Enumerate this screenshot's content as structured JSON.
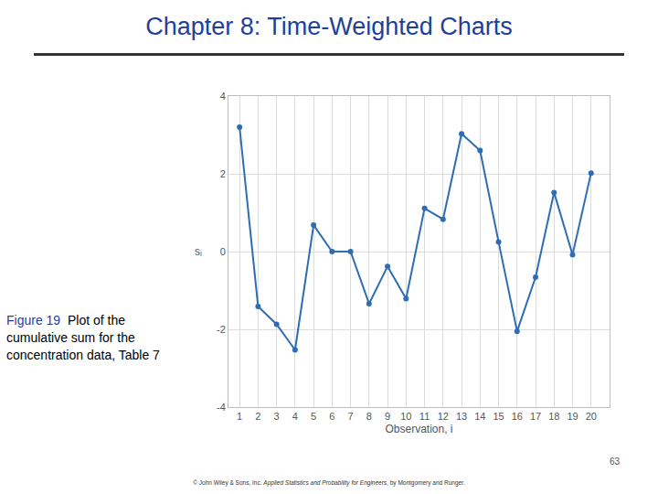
{
  "title": "Chapter 8: Time-Weighted Charts",
  "caption": {
    "label": "Figure 19",
    "text": "Plot of the cumulative sum for the concentration data, Table 7"
  },
  "page_number": "63",
  "footer": {
    "prefix": "© John Wiley & Sons, Inc.",
    "book": "Applied Statistics and Probability for Engineers",
    "suffix": ", by Montgomery and Runger."
  },
  "chart_data": {
    "type": "line",
    "x_label": "Observation, i",
    "y_label": "sᵢ",
    "x": [
      1,
      2,
      3,
      4,
      5,
      6,
      7,
      8,
      9,
      10,
      11,
      12,
      13,
      14,
      15,
      16,
      17,
      18,
      19,
      20
    ],
    "values": [
      3.2,
      -1.41,
      -1.87,
      -2.53,
      0.68,
      0,
      0,
      -1.34,
      -0.38,
      -1.21,
      1.11,
      0.83,
      3.03,
      2.6,
      0.25,
      -2.05,
      -0.66,
      1.52,
      -0.08,
      2.02
    ],
    "color": "#2e6db4",
    "marker": "circle",
    "xlim": [
      0.4,
      21
    ],
    "xticks": [
      1,
      2,
      3,
      4,
      5,
      6,
      7,
      8,
      9,
      10,
      11,
      12,
      13,
      14,
      15,
      16,
      17,
      18,
      19,
      20
    ],
    "ylim": [
      -4,
      4
    ],
    "yticks": [
      -4,
      -2,
      0,
      2,
      4
    ],
    "grid": true
  }
}
